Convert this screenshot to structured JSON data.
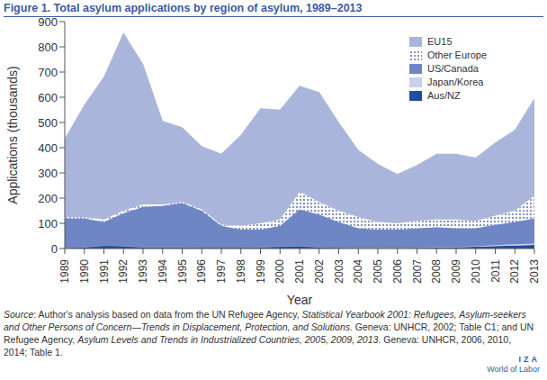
{
  "title": "Figure 1. Total asylum applications by region of asylum, 1989–2013",
  "chart_data": {
    "type": "area",
    "stacked": true,
    "grid": false,
    "legend": "upper right",
    "x_label": "Year",
    "y_label": "Applications (thousands)",
    "categories": [
      "1989",
      "1990",
      "1991",
      "1992",
      "1993",
      "1994",
      "1995",
      "1996",
      "1997",
      "1998",
      "1999",
      "2000",
      "2001",
      "2002",
      "2003",
      "2004",
      "2005",
      "2006",
      "2007",
      "2008",
      "2009",
      "2010",
      "2011",
      "2012",
      "2013"
    ],
    "ylim": [
      0,
      900
    ],
    "yticks": [
      0,
      100,
      200,
      300,
      400,
      500,
      600,
      700,
      800,
      900
    ],
    "series": [
      {
        "name": "EU15",
        "color": "#a9b5db",
        "values": [
          310,
          445,
          565,
          705,
          555,
          330,
          295,
          250,
          280,
          360,
          455,
          435,
          420,
          435,
          350,
          265,
          230,
          195,
          220,
          260,
          260,
          250,
          290,
          320,
          385
        ]
      },
      {
        "name": "Other Europe",
        "color": "#4a5f9e",
        "values": [
          5,
          5,
          10,
          10,
          10,
          5,
          5,
          5,
          5,
          15,
          25,
          25,
          70,
          50,
          45,
          45,
          30,
          25,
          30,
          30,
          35,
          30,
          35,
          45,
          90
        ]
      },
      {
        "name": "US/Canada",
        "color": "#6f86c4",
        "values": [
          118,
          115,
          93,
          130,
          160,
          165,
          175,
          146,
          86,
          71,
          70,
          82,
          145,
          130,
          102,
          77,
          72,
          72,
          76,
          80,
          74,
          71,
          82,
          88,
          100
        ]
      },
      {
        "name": "Japan/Korea",
        "color": "#c8d0ea",
        "values": [
          0,
          0,
          0,
          0,
          0,
          0,
          0,
          0,
          0,
          0,
          0,
          0,
          0,
          0,
          0,
          1,
          1,
          1,
          1,
          1,
          1,
          2,
          3,
          5,
          6
        ]
      },
      {
        "name": "Aus/NZ",
        "color": "#1f4e9e",
        "values": [
          2,
          5,
          12,
          10,
          5,
          5,
          5,
          4,
          4,
          4,
          5,
          8,
          10,
          5,
          3,
          2,
          2,
          2,
          3,
          4,
          5,
          7,
          10,
          12,
          14
        ]
      }
    ]
  },
  "source_parts": [
    "Source",
    ": Author's analysis based on data from the UN Refugee Agency, ",
    "Statistical Yearbook 2001: Refugees, Asylum-seekers and Other Persons of Concern—Trends in Displacement, Protection, and Solutions",
    ". Geneva: UNHCR, 2002; Table C1; and UN Refugee Agency, ",
    "Asylum Levels and Trends in Industrialized Countries, 2005, 2009, 2013",
    ". Geneva: UNHCR, 2006, 2010, 2014; Table 1."
  ],
  "logo": [
    "IZA",
    "World of Labor"
  ]
}
